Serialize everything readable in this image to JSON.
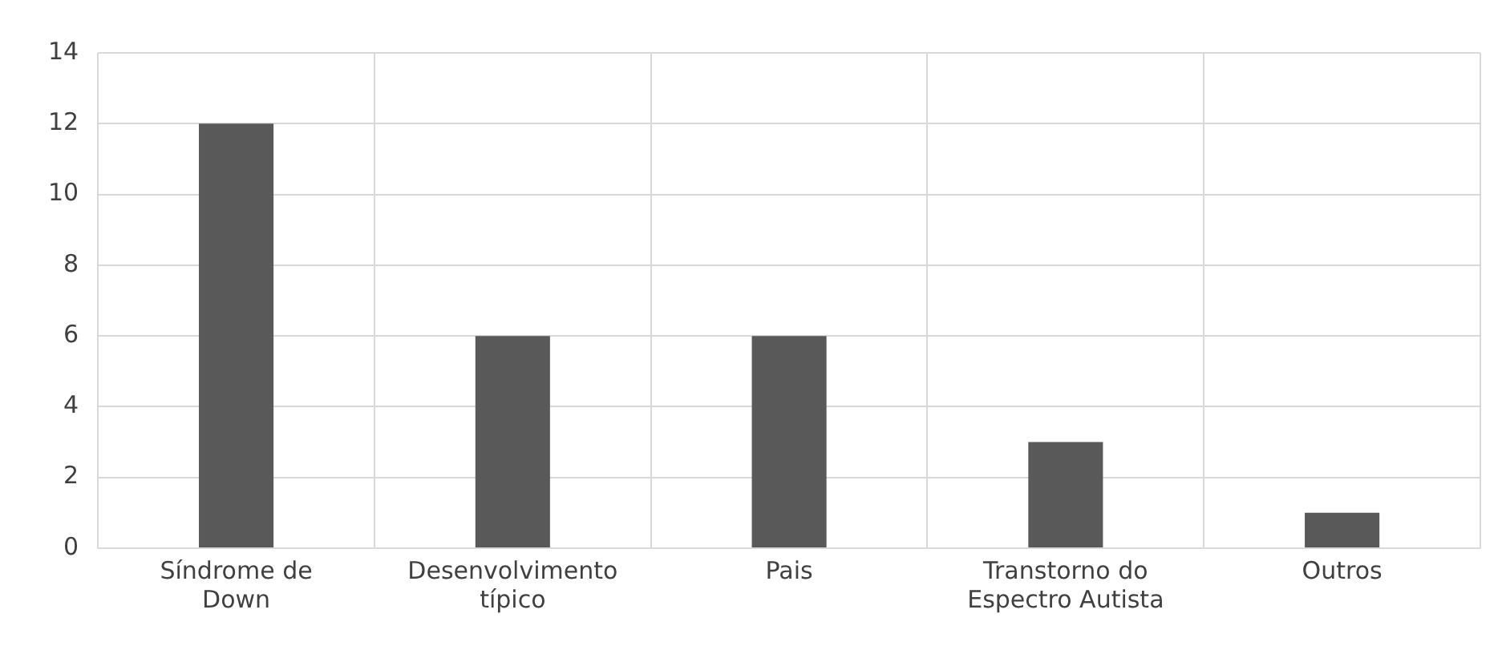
{
  "chart_data": {
    "type": "bar",
    "categories": [
      "Síndrome de Down",
      "Desenvolvimento típico",
      "Pais",
      "Transtorno do Espectro Autista",
      "Outros"
    ],
    "values": [
      12,
      6,
      6,
      3,
      1
    ],
    "color": "#595959",
    "ylim": [
      0,
      14
    ],
    "yticks": [
      0,
      2,
      4,
      6,
      8,
      10,
      12,
      14
    ],
    "grid": true
  }
}
